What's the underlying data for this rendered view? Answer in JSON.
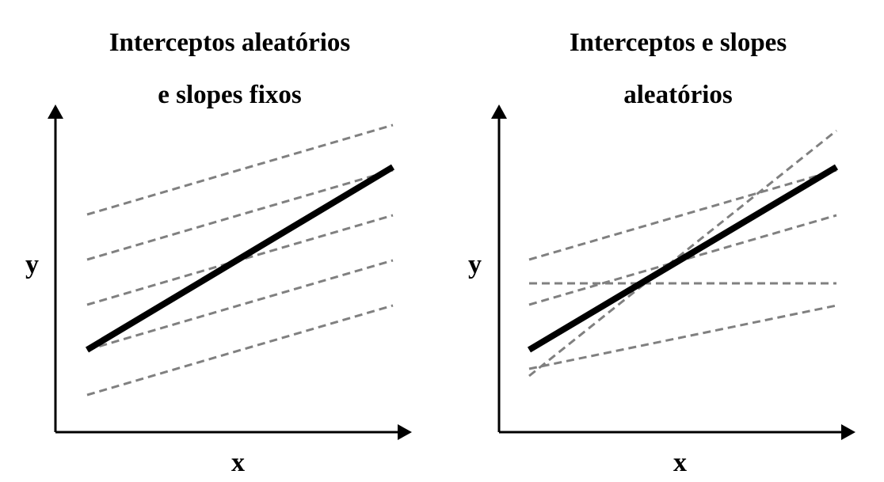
{
  "panels": [
    {
      "title_line1": "Interceptos aleatórios",
      "title_line2": "e slopes fixos",
      "xlabel": "x",
      "ylabel": "y"
    },
    {
      "title_line1": "Interceptos e slopes",
      "title_line2": "aleatórios",
      "xlabel": "x",
      "ylabel": "y"
    }
  ],
  "colors": {
    "axis": "#000000",
    "fixed_line": "#000000",
    "random_lines": "#808080"
  },
  "line_style": {
    "fixed_line": "solid",
    "random_lines": "dashed"
  }
}
